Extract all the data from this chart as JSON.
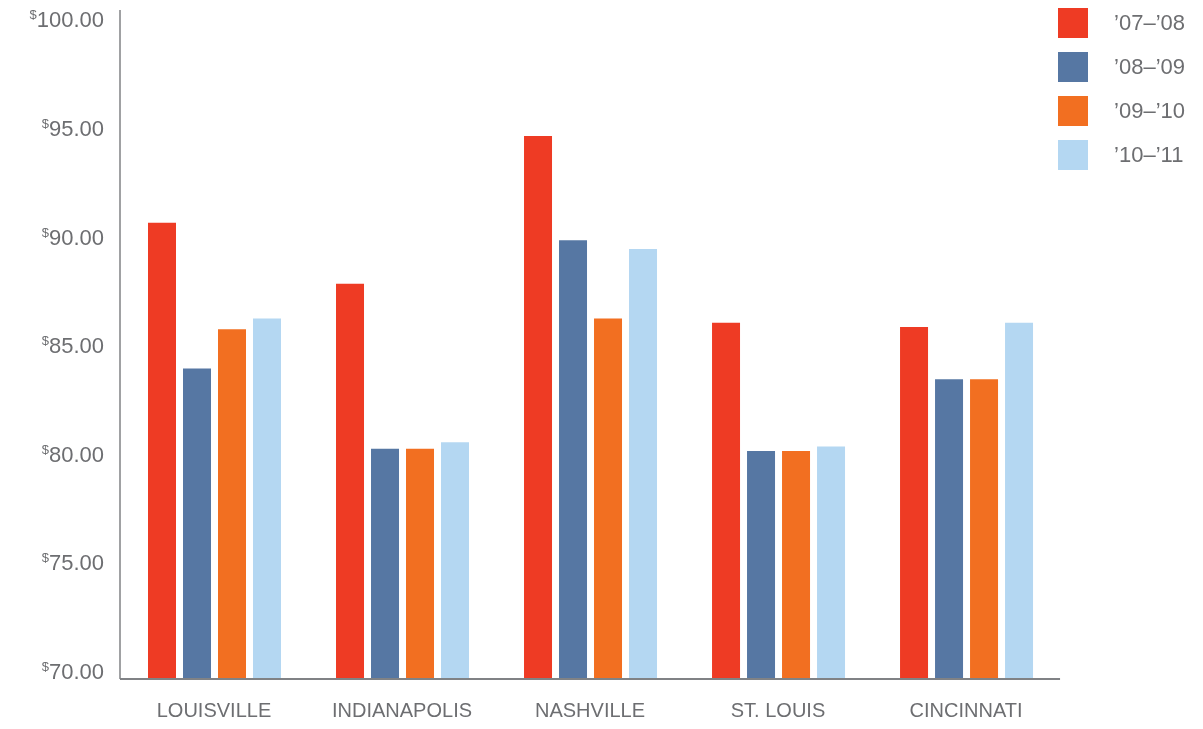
{
  "chart_data": {
    "type": "bar",
    "categories": [
      "LOUISVILLE",
      "INDIANAPOLIS",
      "NASHVILLE",
      "ST. LOUIS",
      "CINCINNATI"
    ],
    "series": [
      {
        "name": "’07–’08",
        "color": "#ee3b24",
        "values": [
          91.0,
          88.2,
          95.0,
          86.4,
          86.2
        ]
      },
      {
        "name": "’08–’09",
        "color": "#5677a3",
        "values": [
          84.3,
          80.6,
          90.2,
          80.5,
          83.8
        ]
      },
      {
        "name": "’09–’10",
        "color": "#f26f21",
        "values": [
          86.1,
          80.6,
          86.6,
          80.5,
          83.8
        ]
      },
      {
        "name": "’10–’11",
        "color": "#b4d7f2",
        "values": [
          86.6,
          80.9,
          89.8,
          80.7,
          86.4
        ]
      }
    ],
    "ylim": [
      70,
      100.8
    ],
    "yticks": [
      {
        "value": 70,
        "label": "$^{$}$70.00"
      },
      {
        "value": 75,
        "label": "$^{$}$75.00"
      },
      {
        "value": 80,
        "label": "$^{$}$80.00"
      },
      {
        "value": 85,
        "label": "$^{$}$85.00"
      },
      {
        "value": 90,
        "label": "$^{$}$90.00"
      },
      {
        "value": 95,
        "label": "$^{$}$95.00"
      },
      {
        "value": 100,
        "label": "$^{$}$100.00"
      }
    ],
    "grid": false,
    "legend": "top right"
  }
}
